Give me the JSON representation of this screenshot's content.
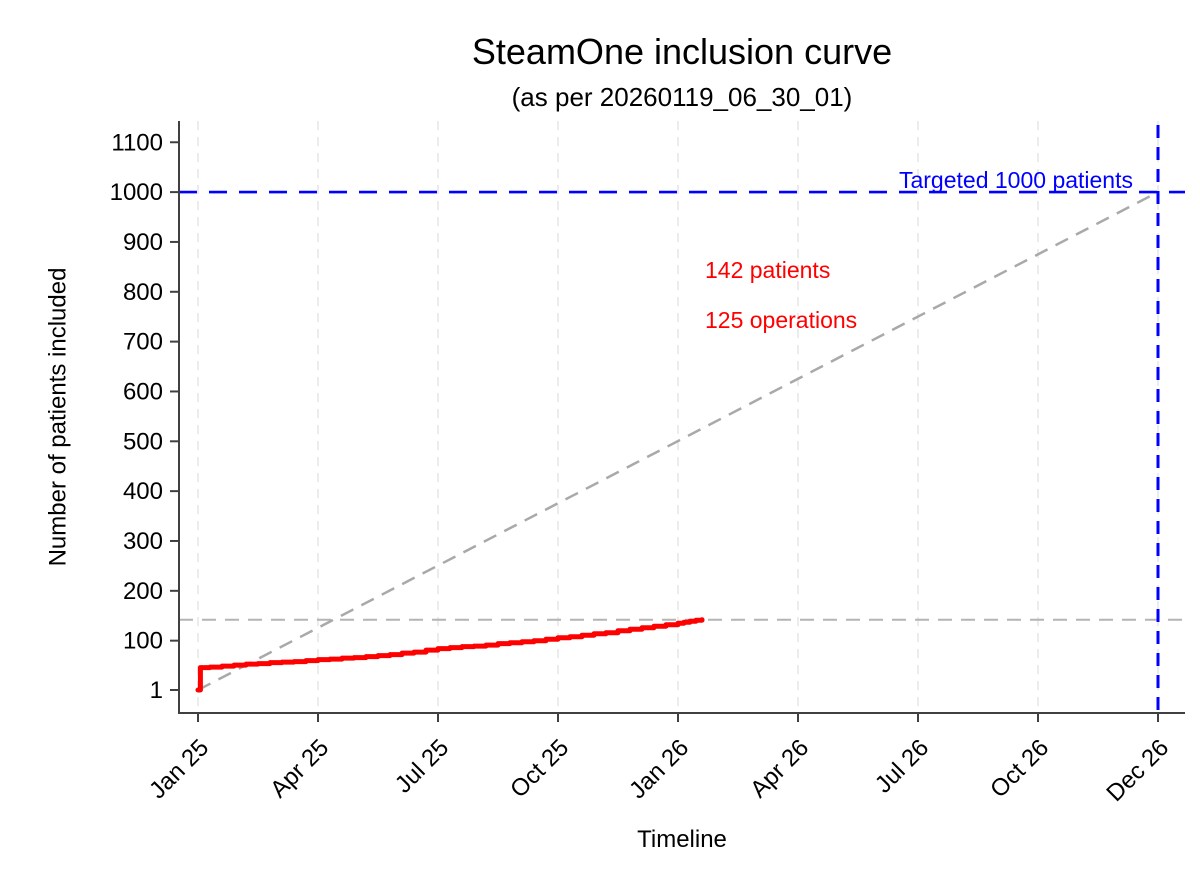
{
  "colors": {
    "accent_blue": "#0000ff",
    "accent_red": "#ff0000",
    "trajectory_gray": "#a9a9a9",
    "reference_gray": "#b4b4b4",
    "gridline_gray": "#ececec",
    "axis_gray": "#404040",
    "text_black": "#000000"
  },
  "chart_data": {
    "type": "line",
    "title": "SteamOne inclusion curve",
    "subtitle": "(as per 20260119_06_30_01)",
    "xlabel": "Timeline",
    "ylabel": "Number of patients included",
    "grid": "vertical-dashed",
    "legend_position": "none",
    "ylim": [
      1,
      1145
    ],
    "y_ticks": [
      1,
      100,
      200,
      300,
      400,
      500,
      600,
      700,
      800,
      900,
      1000,
      1100
    ],
    "x_ticks": [
      {
        "m": 0,
        "label": "Jan 25"
      },
      {
        "m": 3,
        "label": "Apr 25"
      },
      {
        "m": 6,
        "label": "Jul 25"
      },
      {
        "m": 9,
        "label": "Oct 25"
      },
      {
        "m": 12,
        "label": "Jan 26"
      },
      {
        "m": 15,
        "label": "Apr 26"
      },
      {
        "m": 18,
        "label": "Jul 26"
      },
      {
        "m": 21,
        "label": "Oct 26"
      },
      {
        "m": 24,
        "label": "Dec 26"
      }
    ],
    "target": {
      "value": 1000,
      "label": "Targeted 1000 patients",
      "vline_month": 24
    },
    "reference_line_value": 142,
    "annotations": {
      "target_label": "Targeted 1000 patients",
      "patients_label": "142 patients",
      "operations_label": "125 operations"
    },
    "current_patients": 142,
    "current_operations": 125,
    "series": [
      {
        "name": "cumulative-inclusions",
        "style": "step",
        "color": "#ff0000",
        "points": [
          [
            0,
            1
          ],
          [
            0.06,
            46
          ],
          [
            0.3,
            47
          ],
          [
            0.6,
            49
          ],
          [
            0.9,
            51
          ],
          [
            1.2,
            53
          ],
          [
            1.5,
            54
          ],
          [
            1.8,
            56
          ],
          [
            2.1,
            57
          ],
          [
            2.4,
            58
          ],
          [
            2.7,
            60
          ],
          [
            3,
            62
          ],
          [
            3.3,
            63
          ],
          [
            3.6,
            65
          ],
          [
            3.9,
            66
          ],
          [
            4.2,
            68
          ],
          [
            4.5,
            70
          ],
          [
            4.8,
            72
          ],
          [
            5.1,
            75
          ],
          [
            5.4,
            77
          ],
          [
            5.7,
            81
          ],
          [
            6,
            84
          ],
          [
            6.3,
            86
          ],
          [
            6.6,
            88
          ],
          [
            6.9,
            89
          ],
          [
            7.2,
            91
          ],
          [
            7.5,
            94
          ],
          [
            7.8,
            96
          ],
          [
            8.1,
            98
          ],
          [
            8.4,
            100
          ],
          [
            8.7,
            103
          ],
          [
            9,
            106
          ],
          [
            9.3,
            108
          ],
          [
            9.6,
            111
          ],
          [
            9.9,
            114
          ],
          [
            10.2,
            116
          ],
          [
            10.5,
            120
          ],
          [
            10.8,
            123
          ],
          [
            11.1,
            126
          ],
          [
            11.4,
            129
          ],
          [
            11.7,
            132
          ],
          [
            12,
            135
          ],
          [
            12.15,
            137
          ],
          [
            12.3,
            139
          ],
          [
            12.45,
            141
          ],
          [
            12.6,
            142
          ]
        ]
      },
      {
        "name": "target-trajectory",
        "style": "dashed",
        "color": "#a9a9a9",
        "points": [
          [
            0,
            1
          ],
          [
            24,
            1000
          ]
        ]
      }
    ]
  }
}
